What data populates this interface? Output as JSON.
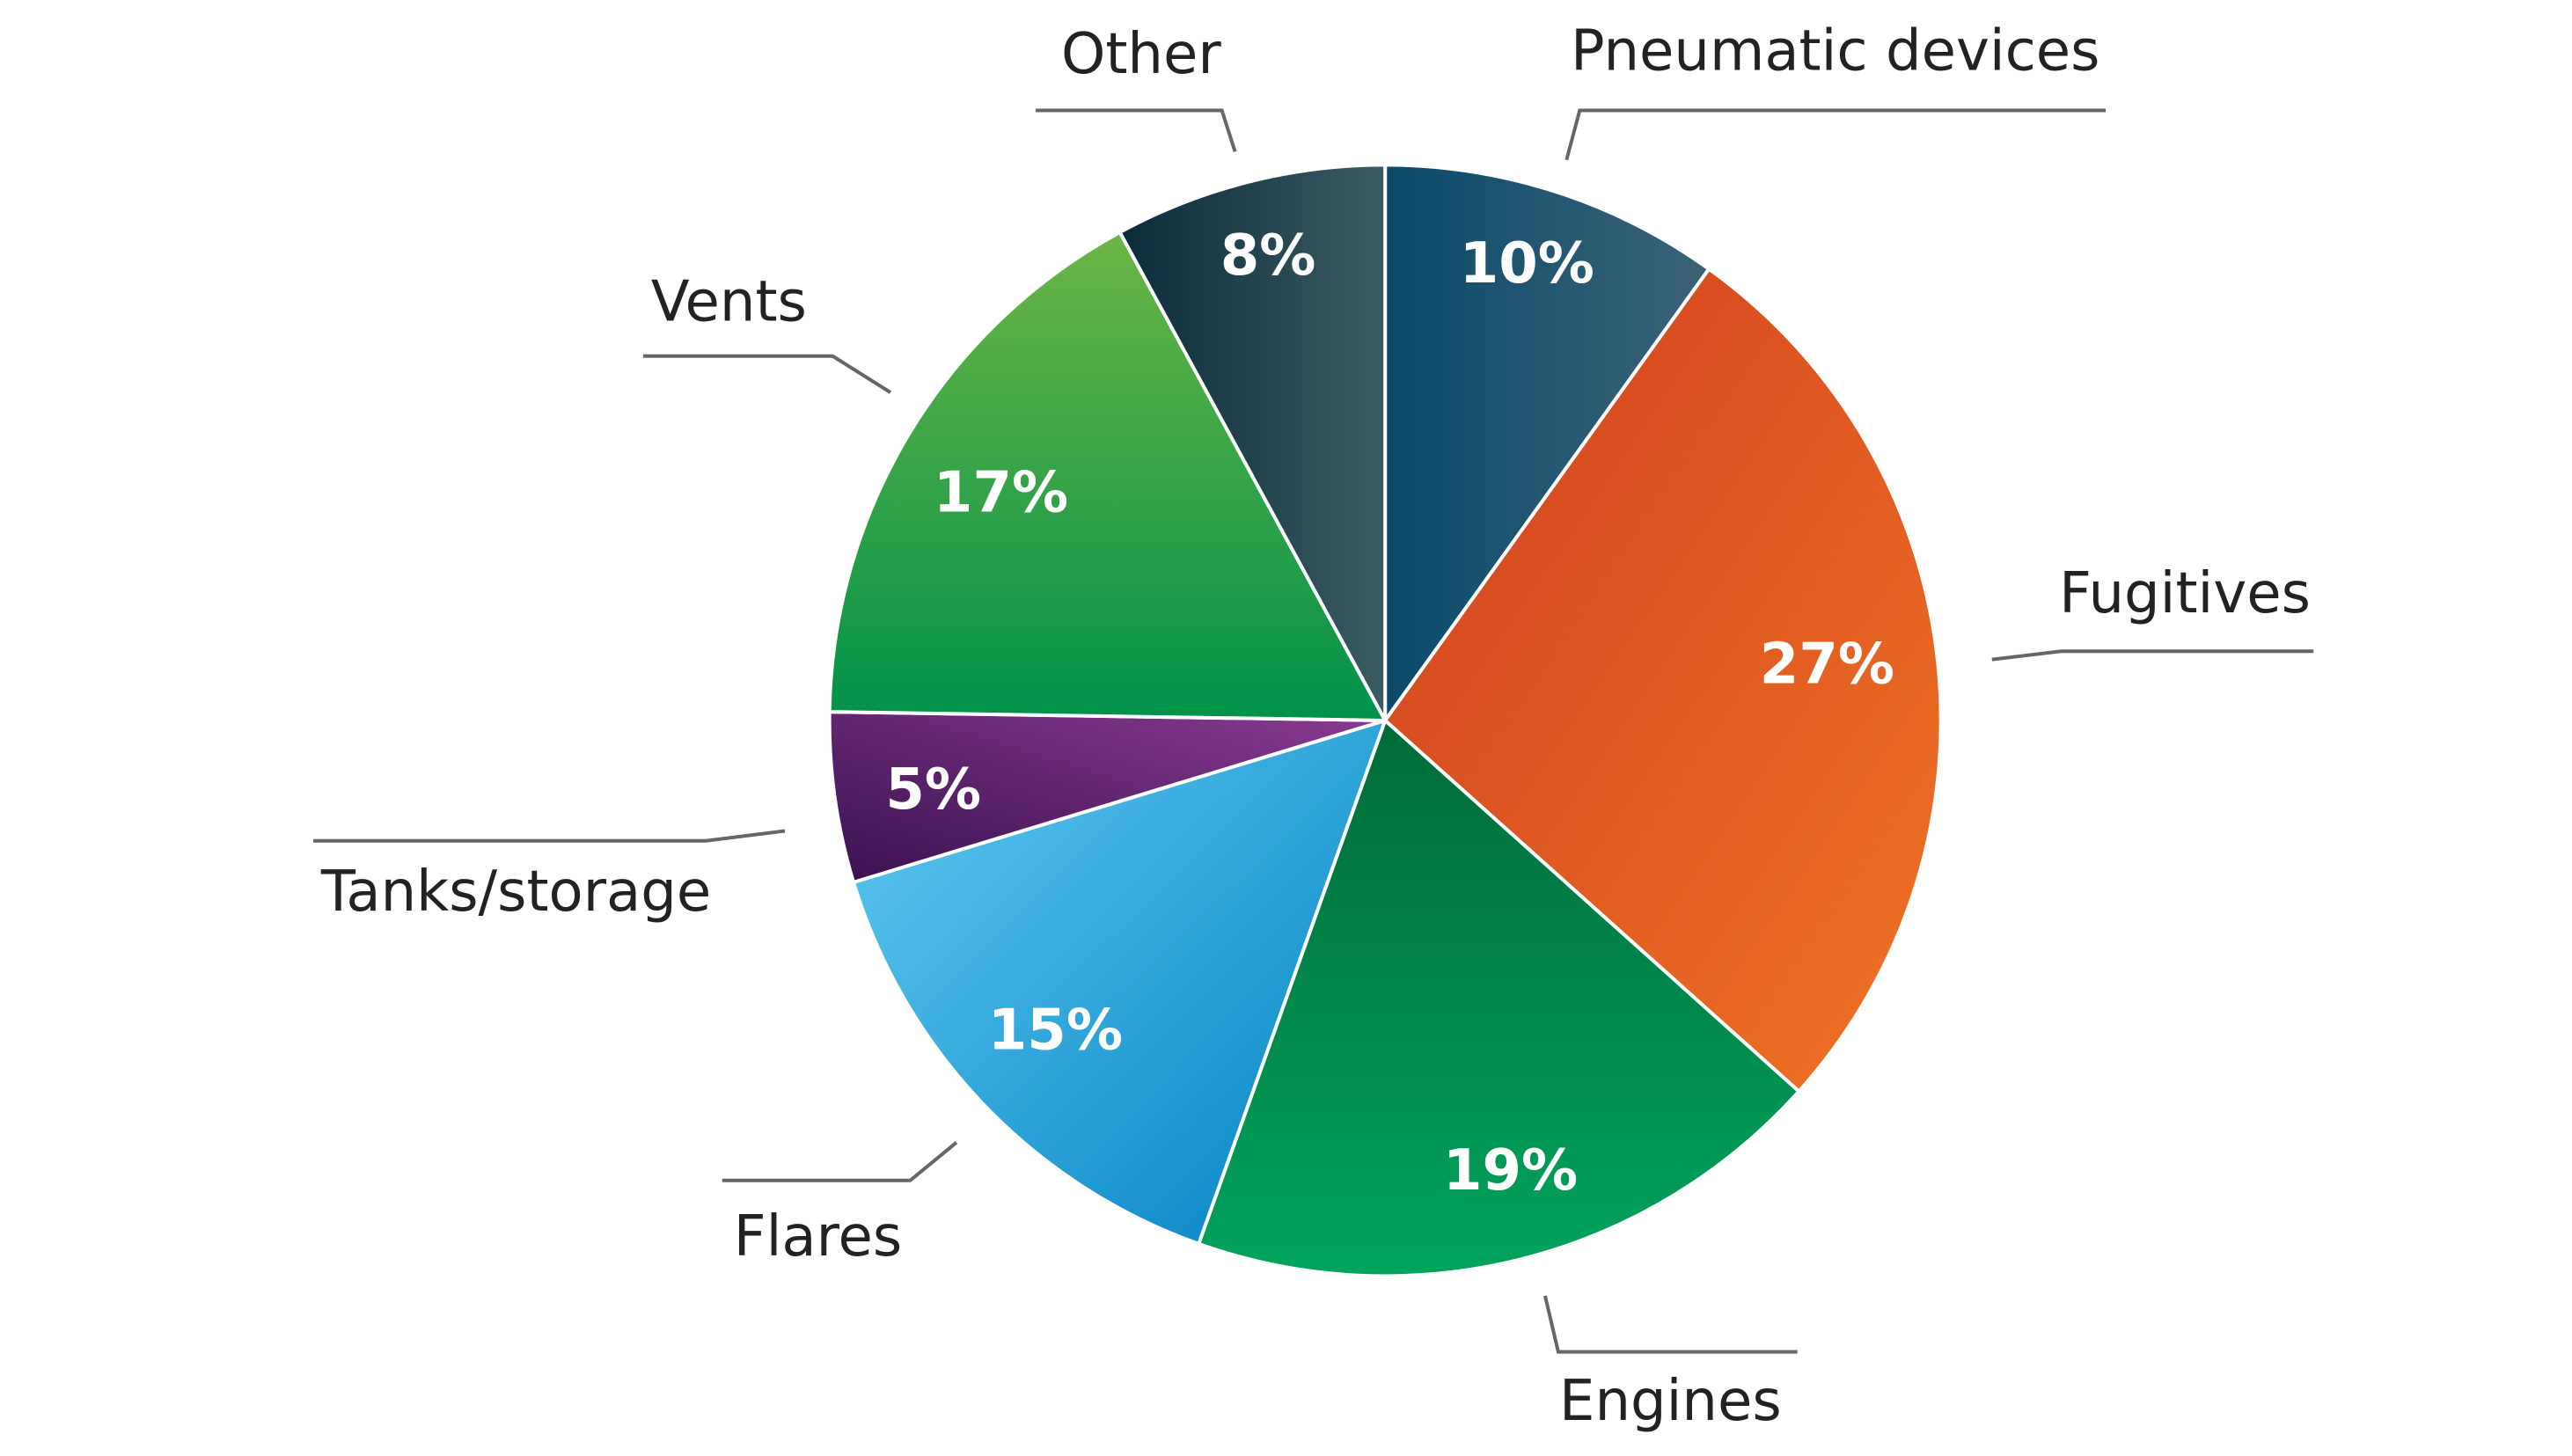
{
  "chart_data": {
    "type": "pie",
    "categories": [
      "Pneumatic devices",
      "Fugitives",
      "Engines",
      "Flares",
      "Tanks/storage",
      "Vents",
      "Other"
    ],
    "values": [
      10,
      27,
      19,
      15,
      5,
      17,
      8
    ],
    "value_labels": [
      "10%",
      "27%",
      "19%",
      "15%",
      "5%",
      "17%",
      "8%"
    ],
    "colors": [
      [
        "#0b4a6b",
        "#3b6377"
      ],
      [
        "#cf3d20",
        "#ef7524"
      ],
      [
        "#006a39",
        "#00a45c"
      ],
      [
        "#62cbf2",
        "#0080c2"
      ],
      [
        "#3a114f",
        "#8b3b92"
      ],
      [
        "#6cb545",
        "#00924a"
      ],
      [
        "#0a2b3a",
        "#3b5c62"
      ]
    ]
  }
}
